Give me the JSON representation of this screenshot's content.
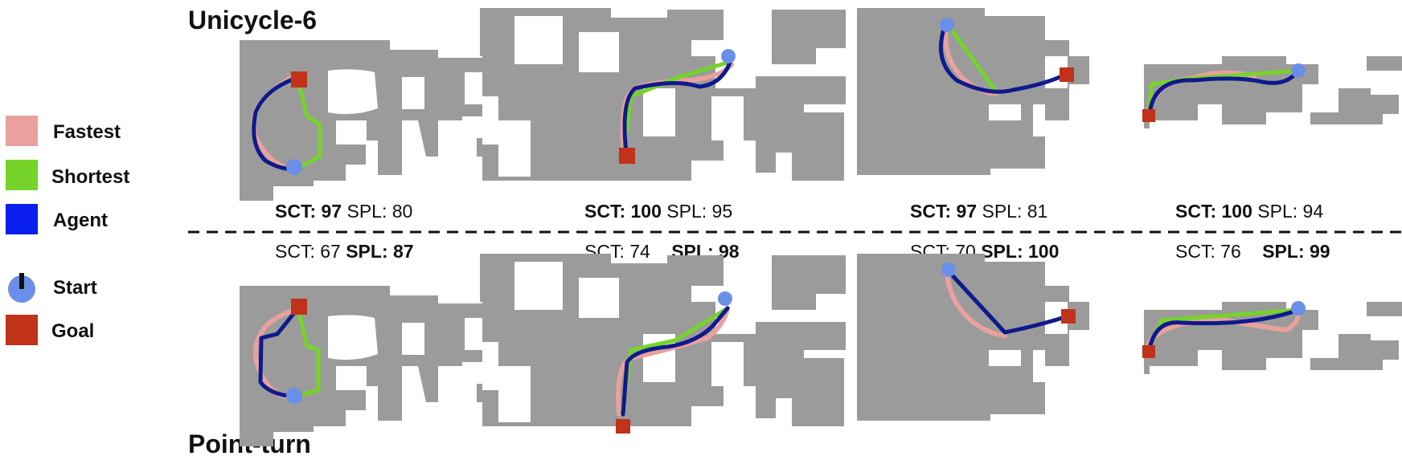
{
  "titles": {
    "top": "Unicycle-6",
    "bottom": "Point-turn"
  },
  "legend": {
    "fastest": "Fastest",
    "shortest": "Shortest",
    "agent": "Agent",
    "start": "Start",
    "goal": "Goal"
  },
  "colors": {
    "fastest": "#e8a19e",
    "shortest": "#76d32a",
    "agent_legend": "#0a1eee",
    "agent_path": "#0e1a8c",
    "start": "#6b8fe8",
    "goal": "#c0321a",
    "map": "#9b9b9b"
  },
  "metrics": {
    "top": [
      {
        "sct_label": "SCT:",
        "sct": "97",
        "spl_label": "SPL:",
        "spl": "80"
      },
      {
        "sct_label": "SCT:",
        "sct": "100",
        "spl_label": "SPL:",
        "spl": "95"
      },
      {
        "sct_label": "SCT:",
        "sct": "97",
        "spl_label": "SPL:",
        "spl": "81"
      },
      {
        "sct_label": "SCT:",
        "sct": "100",
        "spl_label": "SPL:",
        "spl": "94"
      }
    ],
    "bottom": [
      {
        "sct_label": "SCT:",
        "sct": "67",
        "spl_label": "SPL:",
        "spl": "87"
      },
      {
        "sct_label": "SCT:",
        "sct": "74",
        "spl_label": "SPL:",
        "spl": "98"
      },
      {
        "sct_label": "SCT:",
        "sct": "70",
        "spl_label": "SPL:",
        "spl": "100"
      },
      {
        "sct_label": "SCT:",
        "sct": "76",
        "spl_label": "SPL:",
        "spl": "99"
      }
    ]
  },
  "bold_metric": {
    "top": "SCT",
    "bottom": "SPL"
  }
}
